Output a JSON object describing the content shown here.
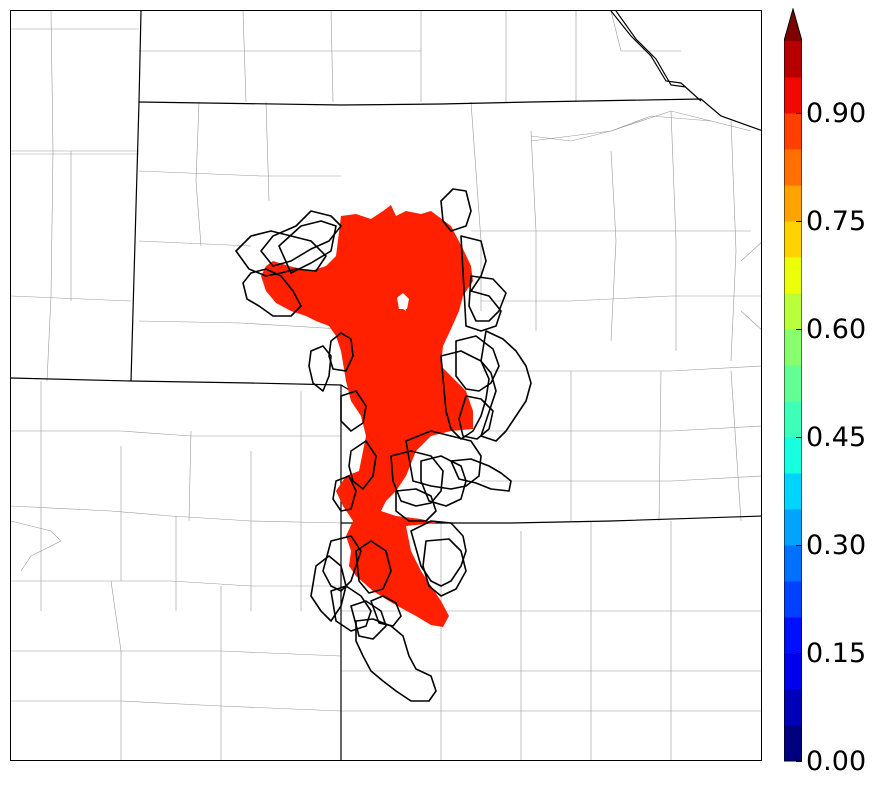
{
  "colorbar": {
    "ticks": [
      {
        "value": 0.0,
        "label": "0.00"
      },
      {
        "value": 0.15,
        "label": "0.15"
      },
      {
        "value": 0.3,
        "label": "0.30"
      },
      {
        "value": 0.45,
        "label": "0.45"
      },
      {
        "value": 0.6,
        "label": "0.60"
      },
      {
        "value": 0.75,
        "label": "0.75"
      },
      {
        "value": 0.9,
        "label": "0.90"
      }
    ],
    "range": [
      0.0,
      1.0
    ],
    "levels": 20,
    "colormap": "jet",
    "extend": "max",
    "colors": [
      "#00007f",
      "#0000b6",
      "#0000ed",
      "#0010ff",
      "#0040ff",
      "#0070ff",
      "#00a4ff",
      "#00d4ff",
      "#18ffdf",
      "#3dffb9",
      "#63ff94",
      "#89ff6e",
      "#b9ff3d",
      "#ecff0a",
      "#ffd300",
      "#ffa300",
      "#ff7000",
      "#ff4000",
      "#f10800",
      "#b60000",
      "#7f0000"
    ]
  },
  "map": {
    "background": "#ffffff",
    "state_line_color": "#000000",
    "county_line_color": "#999999",
    "contour_color": "#000000",
    "fill_color": "#ff2000",
    "fill_probability": 0.92
  }
}
